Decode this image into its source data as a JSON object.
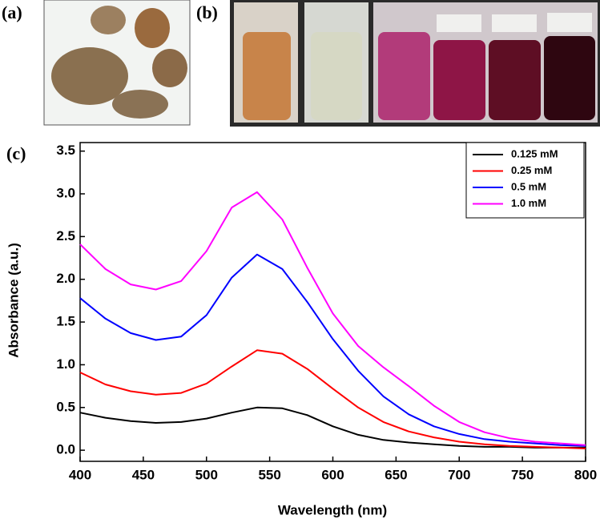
{
  "chart_data": {
    "type": "line",
    "panel_labels": [
      "(a)",
      "(b)",
      "(c)"
    ],
    "xlabel": "Wavelength (nm)",
    "ylabel": "Absorbance (a.u.)",
    "x": [
      400,
      420,
      440,
      460,
      480,
      500,
      520,
      540,
      560,
      580,
      600,
      620,
      640,
      660,
      680,
      700,
      720,
      740,
      760,
      780,
      800
    ],
    "series": [
      {
        "name": "0.125 mM",
        "color": "#000000",
        "values": [
          0.44,
          0.38,
          0.34,
          0.32,
          0.33,
          0.37,
          0.44,
          0.5,
          0.49,
          0.41,
          0.28,
          0.18,
          0.12,
          0.09,
          0.07,
          0.05,
          0.04,
          0.04,
          0.03,
          0.03,
          0.03
        ]
      },
      {
        "name": "0.25 mM",
        "color": "#ff0000",
        "values": [
          0.91,
          0.77,
          0.69,
          0.65,
          0.67,
          0.78,
          0.98,
          1.17,
          1.13,
          0.95,
          0.72,
          0.5,
          0.33,
          0.22,
          0.15,
          0.1,
          0.07,
          0.05,
          0.04,
          0.03,
          0.02
        ]
      },
      {
        "name": "0.5 mM",
        "color": "#0000ff",
        "values": [
          1.78,
          1.54,
          1.37,
          1.29,
          1.33,
          1.58,
          2.02,
          2.29,
          2.12,
          1.73,
          1.3,
          0.93,
          0.63,
          0.42,
          0.28,
          0.19,
          0.13,
          0.1,
          0.08,
          0.06,
          0.05
        ]
      },
      {
        "name": "1.0 mM",
        "color": "#ff00ff",
        "values": [
          2.41,
          2.12,
          1.94,
          1.88,
          1.98,
          2.33,
          2.84,
          3.02,
          2.7,
          2.13,
          1.6,
          1.22,
          0.97,
          0.75,
          0.52,
          0.33,
          0.21,
          0.14,
          0.1,
          0.08,
          0.06
        ]
      }
    ],
    "xlim": [
      400,
      800
    ],
    "xticks": [
      400,
      450,
      500,
      550,
      600,
      650,
      700,
      750,
      800
    ],
    "ylim": [
      -0.13,
      3.6
    ],
    "yticks": [
      {
        "value": 0,
        "label": "0.0"
      },
      0.5,
      {
        "value": 1,
        "label": "1.0"
      },
      1.5,
      {
        "value": 2,
        "label": "2.0"
      },
      2.5,
      {
        "value": 3,
        "label": "3.0"
      },
      3.5
    ],
    "legend": "upper-right"
  }
}
